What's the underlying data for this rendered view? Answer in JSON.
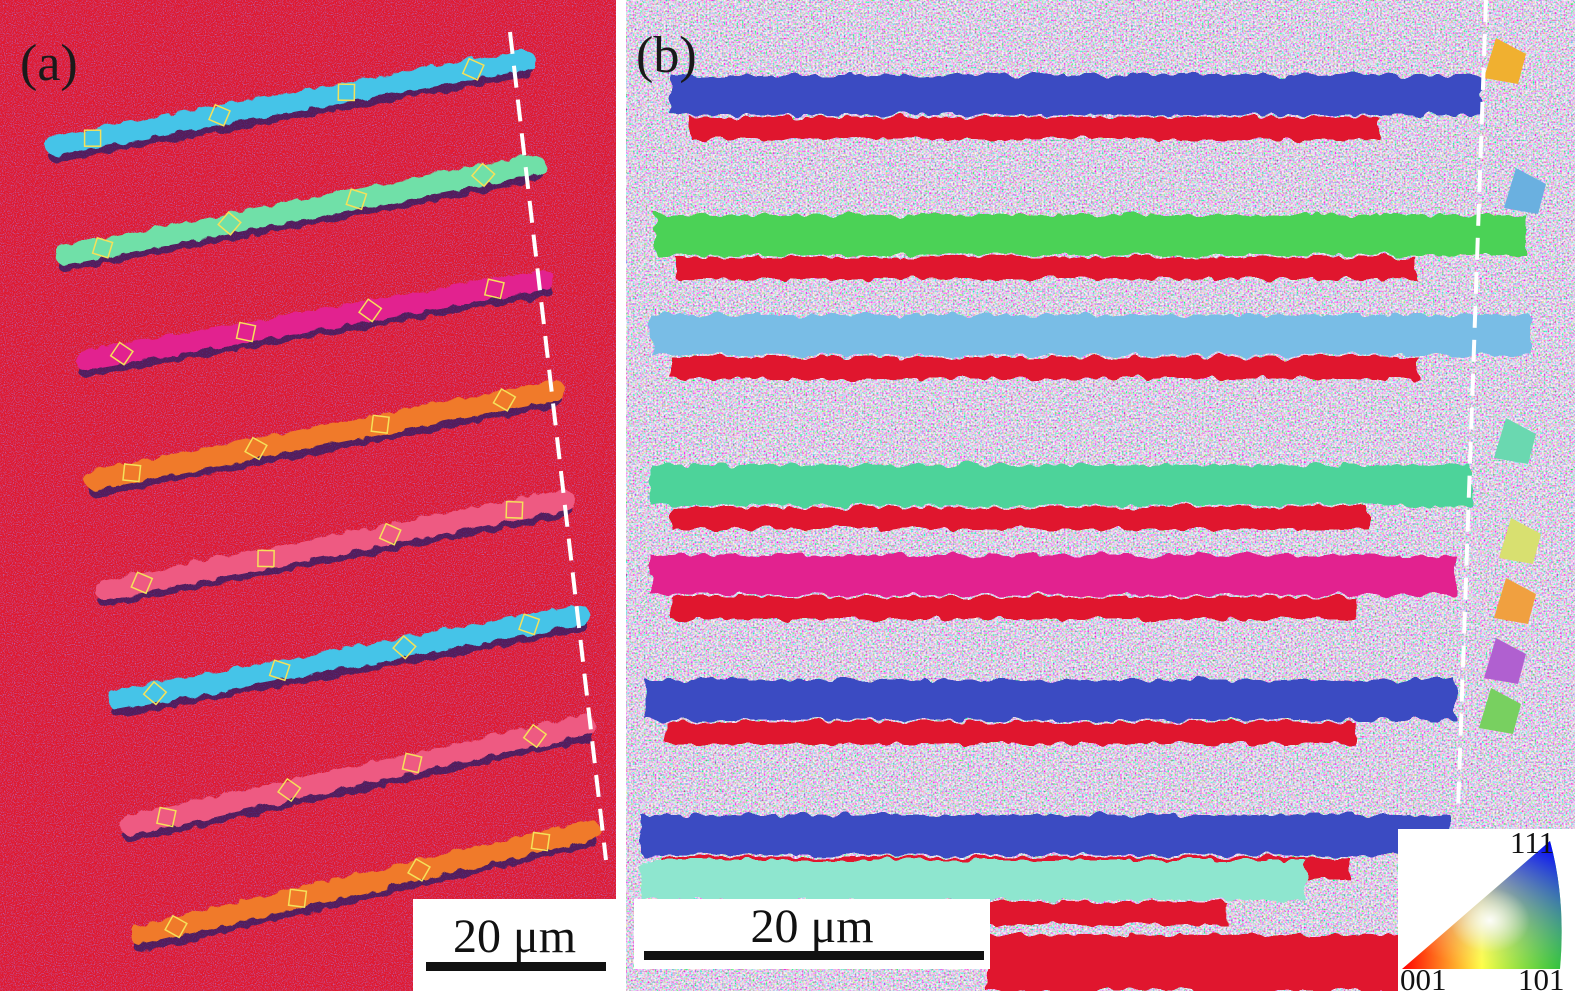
{
  "panels": [
    {
      "label": "(a)",
      "scale_bar": "20 μm"
    },
    {
      "label": "(b)",
      "scale_bar": "20 μm"
    }
  ],
  "ipf_legend": {
    "pole_111": "111",
    "pole_001": "001",
    "pole_101": "101"
  },
  "colors": {
    "matrix_red": "#e0192e",
    "grain_cyan": "#45c4e8",
    "grain_mint": "#6fe0a8",
    "grain_magenta": "#e2238f",
    "grain_orange": "#f07a2a",
    "grain_pink": "#ee5a82",
    "grain_blue": "#3a4cc2",
    "grain_green": "#4cd257",
    "grain_light_blue": "#79bde6",
    "grain_teal": "#4ed39a",
    "grain_light_cyan": "#8ee6cf",
    "boundary_dash": "#ffffff"
  }
}
